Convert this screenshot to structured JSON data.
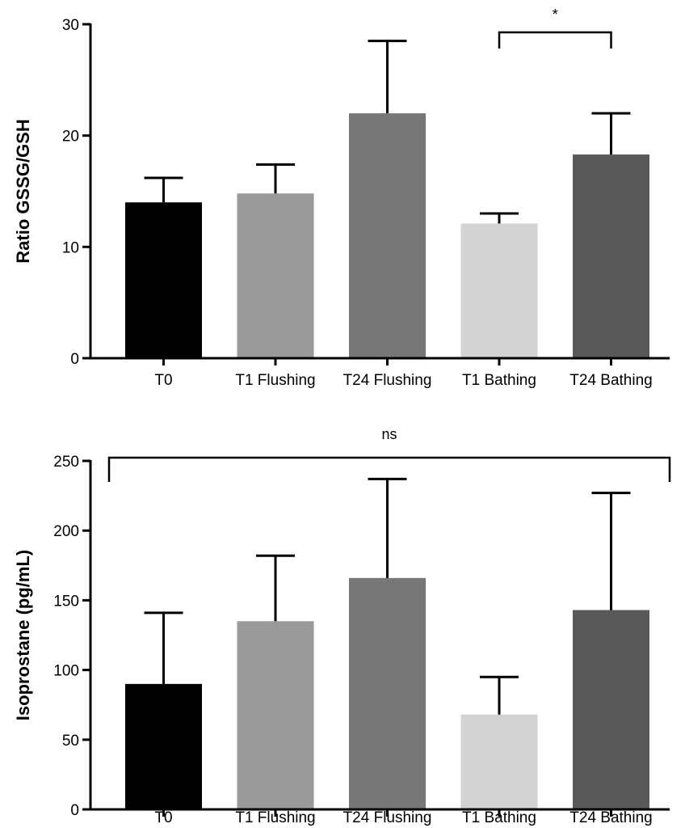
{
  "chart_data": [
    {
      "type": "bar",
      "ylabel": "Ratio GSSG/GSH",
      "xlabel": "",
      "ylim": [
        0,
        30
      ],
      "yticks": [
        0,
        10,
        20,
        30
      ],
      "categories": [
        "T0",
        "T1 Flushing",
        "T24 Flushing",
        "T1 Bathing",
        "T24 Bathing"
      ],
      "values": [
        14.0,
        14.8,
        22.0,
        12.1,
        18.3
      ],
      "error_upper": [
        16.2,
        17.4,
        28.5,
        13.0,
        22.0
      ],
      "colors": [
        "#000000",
        "#9a9a9a",
        "#777777",
        "#d3d3d3",
        "#595959"
      ],
      "significance": [
        {
          "from": 3,
          "to": 4,
          "label": "*"
        }
      ],
      "grid": false
    },
    {
      "type": "bar",
      "ylabel": "Isoprostane  (pg/mL)",
      "xlabel": "",
      "ylim": [
        0,
        250
      ],
      "yticks": [
        0,
        50,
        100,
        150,
        200,
        250
      ],
      "categories": [
        "T0",
        "T1 Flushing",
        "T24 Flushing",
        "T1 Bathing",
        "T24 Bathing"
      ],
      "values": [
        90,
        135,
        166,
        68,
        143
      ],
      "error_upper": [
        141,
        182,
        237,
        95,
        227
      ],
      "colors": [
        "#000000",
        "#9a9a9a",
        "#777777",
        "#d3d3d3",
        "#595959"
      ],
      "significance": [
        {
          "from": 0,
          "to": 4,
          "label": "ns"
        }
      ],
      "grid": false
    }
  ]
}
